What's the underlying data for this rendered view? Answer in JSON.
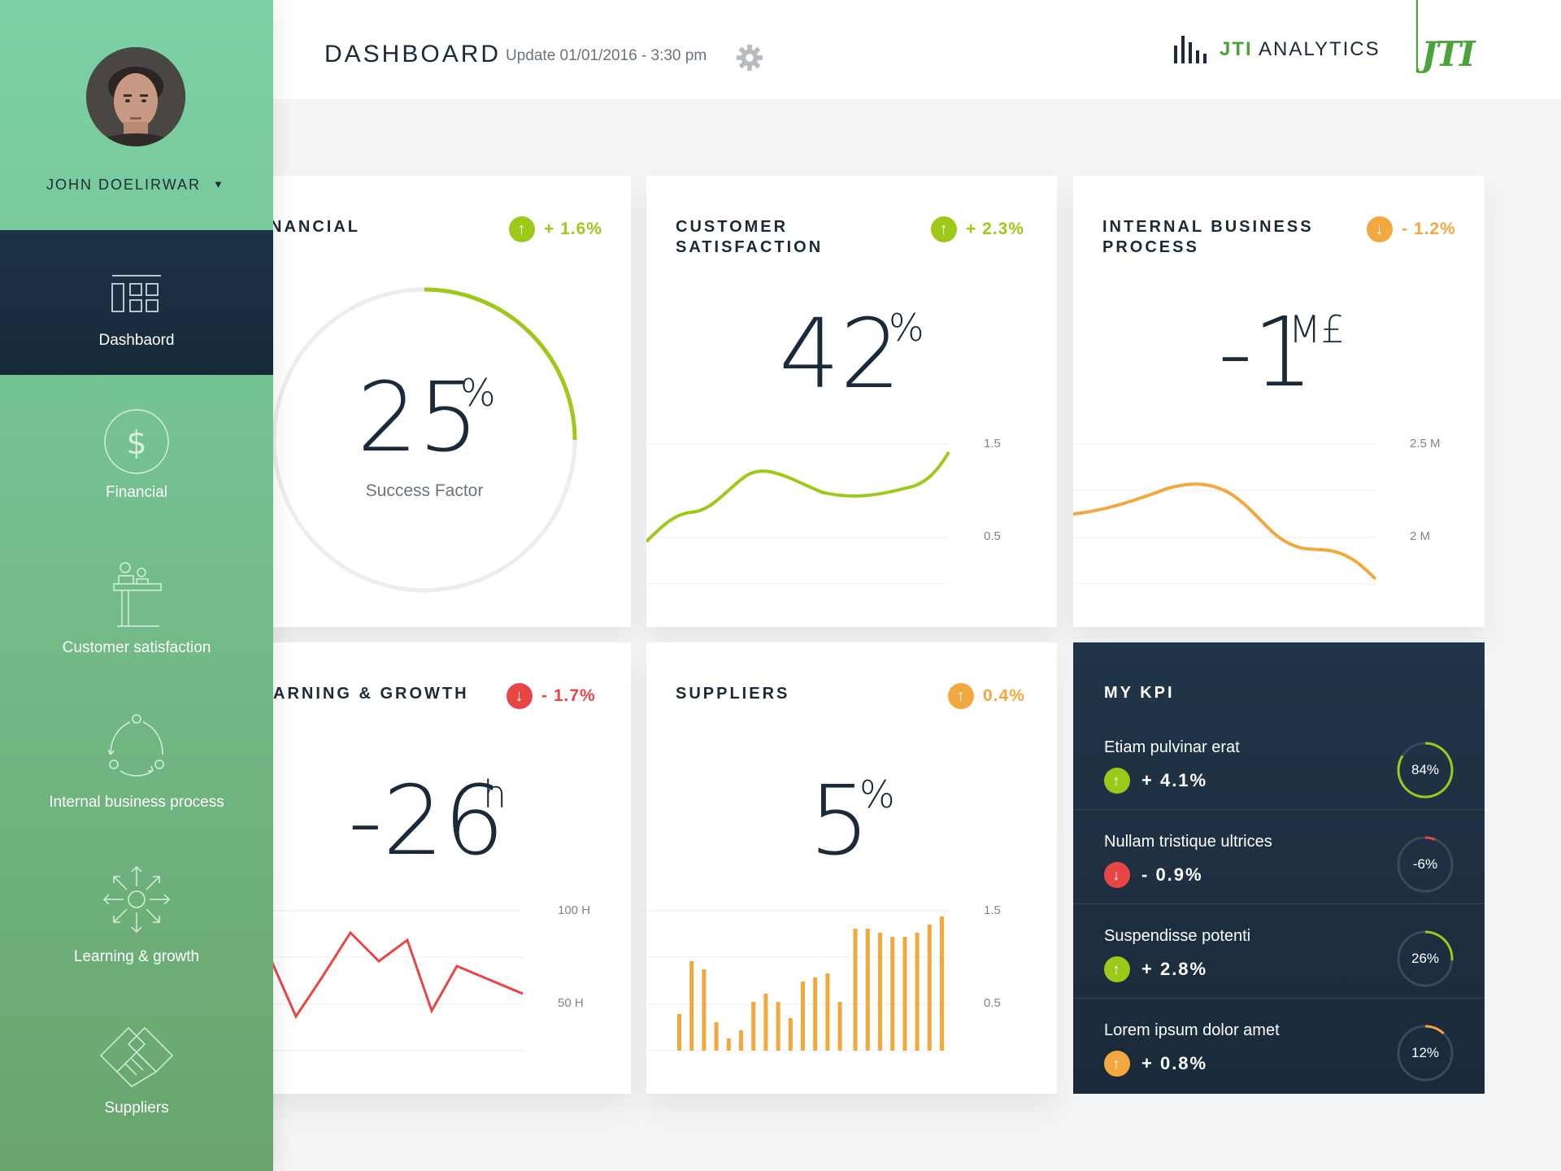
{
  "header": {
    "title": "DASHBOARD",
    "update": "Update 01/01/2016 - 3:30 pm",
    "settings_icon": "gear-icon",
    "brand_prefix": "JTI",
    "brand_suffix": " ANALYTICS",
    "brand_logo": "JTI",
    "brand_color": "#4aa43a"
  },
  "sidebar": {
    "user_name": "JOHN DOELIRWAR",
    "user_caret": "▼",
    "items": [
      {
        "label": "Dashbaord",
        "icon": "dashboard-icon",
        "active": true
      },
      {
        "label": "Financial",
        "icon": "dollar-icon",
        "active": false
      },
      {
        "label": "Customer satisfaction",
        "icon": "customer-desk-icon",
        "active": false
      },
      {
        "label": "Internal business process",
        "icon": "process-cycle-icon",
        "active": false
      },
      {
        "label": "Learning & growth",
        "icon": "growth-arrows-icon",
        "active": false
      },
      {
        "label": "Suppliers",
        "icon": "handshake-icon",
        "active": false
      }
    ]
  },
  "cards": {
    "financial": {
      "title": "NANCIAL",
      "change": "+ 1.6%",
      "arrow": "↑",
      "value": "25",
      "unit": "%",
      "subtitle": "Success Factor",
      "progress": 0.25
    },
    "customer": {
      "title_line1": "CUSTOMER",
      "title_line2": "SATISFACTION",
      "change": "+ 2.3%",
      "arrow": "↑",
      "value": "42",
      "unit": "%",
      "axis_top": "1.5",
      "axis_bottom": "0.5"
    },
    "internal": {
      "title_line1": "INTERNAL BUSINESS",
      "title_line2": "PROCESS",
      "change": "- 1.2%",
      "arrow": "↓",
      "value": "-1",
      "unit": "M£",
      "axis_top": "2.5 M",
      "axis_bottom": "2 M"
    },
    "learning": {
      "title": "ARNING & GROWTH",
      "change": "- 1.7%",
      "arrow": "↓",
      "value": "-26",
      "unit": "h",
      "axis_top": "100 H",
      "axis_bottom": "50 H"
    },
    "suppliers": {
      "title": "SUPPLIERS",
      "change": "0.4%",
      "arrow": "↑",
      "value": "5",
      "unit": "%",
      "axis_top": "1.5",
      "axis_bottom": "0.5"
    }
  },
  "kpi": {
    "title": "MY KPI",
    "items": [
      {
        "name": "Etiam pulvinar erat",
        "change": "+ 4.1%",
        "arrow": "↑",
        "arrow_color": "#9dc91a",
        "ring": "84%",
        "ring_value": 0.84,
        "ring_color": "#9dc91a"
      },
      {
        "name": "Nullam tristique ultrices",
        "change": "- 0.9%",
        "arrow": "↓",
        "arrow_color": "#e84545",
        "ring": "-6%",
        "ring_value": 0.06,
        "ring_color": "#e84545"
      },
      {
        "name": "Suspendisse potenti",
        "change": "+ 2.8%",
        "arrow": "↑",
        "arrow_color": "#9dc91a",
        "ring": "26%",
        "ring_value": 0.26,
        "ring_color": "#9dc91a"
      },
      {
        "name": "Lorem ipsum dolor amet",
        "change": "+ 0.8%",
        "arrow": "↑",
        "arrow_color": "#f2a83e",
        "ring": "12%",
        "ring_value": 0.12,
        "ring_color": "#f2a83e"
      }
    ]
  },
  "colors": {
    "green": "#9dc91a",
    "orange": "#f2a83e",
    "red": "#e84545",
    "navy": "#1b2a38"
  }
}
